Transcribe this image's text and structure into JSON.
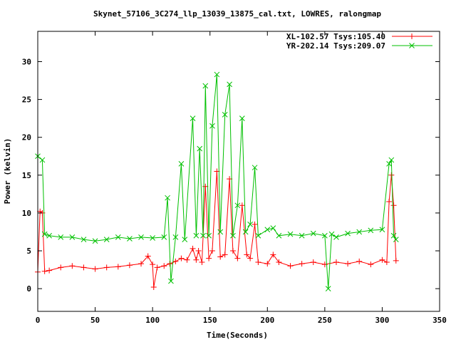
{
  "chart_data": {
    "type": "line",
    "title": "Skynet_57106_3C274_llp_13039_13875_cal.txt, LOWRES, ralongmap",
    "xlabel": "Time(Seconds)",
    "ylabel": "Power (kelvin)",
    "xlim": [
      0,
      350
    ],
    "ylim": [
      -3,
      34
    ],
    "xticks": [
      0,
      50,
      100,
      150,
      200,
      250,
      300,
      350
    ],
    "yticks": [
      0,
      5,
      10,
      15,
      20,
      25,
      30
    ],
    "legend_position": "top-right",
    "grid": false,
    "series": [
      {
        "name": "XL-102.57 Tsys:105.40",
        "color": "#ff0000",
        "marker": "plus",
        "points": [
          [
            0,
            2.2
          ],
          [
            2,
            10.2
          ],
          [
            4,
            10.0
          ],
          [
            6,
            2.3
          ],
          [
            10,
            2.4
          ],
          [
            20,
            2.8
          ],
          [
            30,
            3.0
          ],
          [
            40,
            2.8
          ],
          [
            50,
            2.6
          ],
          [
            60,
            2.8
          ],
          [
            70,
            2.9
          ],
          [
            80,
            3.1
          ],
          [
            90,
            3.3
          ],
          [
            96,
            4.3
          ],
          [
            100,
            3.2
          ],
          [
            101,
            0.2
          ],
          [
            104,
            2.8
          ],
          [
            110,
            3.0
          ],
          [
            115,
            3.3
          ],
          [
            120,
            3.6
          ],
          [
            125,
            4.0
          ],
          [
            130,
            3.8
          ],
          [
            135,
            5.3
          ],
          [
            138,
            3.8
          ],
          [
            140,
            5.0
          ],
          [
            143,
            3.5
          ],
          [
            146,
            13.5
          ],
          [
            149,
            4.0
          ],
          [
            152,
            5.0
          ],
          [
            156,
            15.5
          ],
          [
            159,
            4.2
          ],
          [
            163,
            4.5
          ],
          [
            167,
            14.5
          ],
          [
            170,
            5.0
          ],
          [
            174,
            4.0
          ],
          [
            178,
            11.0
          ],
          [
            182,
            4.5
          ],
          [
            185,
            4.0
          ],
          [
            189,
            8.5
          ],
          [
            192,
            3.5
          ],
          [
            200,
            3.3
          ],
          [
            205,
            4.5
          ],
          [
            210,
            3.5
          ],
          [
            220,
            3.0
          ],
          [
            230,
            3.3
          ],
          [
            240,
            3.5
          ],
          [
            250,
            3.2
          ],
          [
            260,
            3.5
          ],
          [
            270,
            3.3
          ],
          [
            280,
            3.6
          ],
          [
            290,
            3.2
          ],
          [
            300,
            3.8
          ],
          [
            304,
            3.5
          ],
          [
            306,
            11.5
          ],
          [
            308,
            15.0
          ],
          [
            310,
            11.0
          ],
          [
            312,
            3.7
          ]
        ]
      },
      {
        "name": "YR-202.14 Tsys:209.07",
        "color": "#00c000",
        "marker": "cross",
        "points": [
          [
            0,
            17.5
          ],
          [
            4,
            17.0
          ],
          [
            6,
            7.2
          ],
          [
            10,
            7.0
          ],
          [
            20,
            6.8
          ],
          [
            30,
            6.8
          ],
          [
            40,
            6.5
          ],
          [
            50,
            6.3
          ],
          [
            60,
            6.5
          ],
          [
            70,
            6.8
          ],
          [
            80,
            6.6
          ],
          [
            90,
            6.8
          ],
          [
            100,
            6.7
          ],
          [
            110,
            6.8
          ],
          [
            113,
            12.0
          ],
          [
            116,
            1.0
          ],
          [
            120,
            6.8
          ],
          [
            125,
            16.5
          ],
          [
            128,
            6.5
          ],
          [
            135,
            22.5
          ],
          [
            138,
            7.0
          ],
          [
            141,
            18.5
          ],
          [
            144,
            7.0
          ],
          [
            146,
            26.8
          ],
          [
            149,
            7.0
          ],
          [
            152,
            21.5
          ],
          [
            156,
            28.3
          ],
          [
            159,
            7.5
          ],
          [
            163,
            23.0
          ],
          [
            167,
            27.0
          ],
          [
            170,
            7.0
          ],
          [
            174,
            11.0
          ],
          [
            178,
            22.5
          ],
          [
            181,
            7.5
          ],
          [
            185,
            8.5
          ],
          [
            189,
            16.0
          ],
          [
            192,
            7.0
          ],
          [
            200,
            7.8
          ],
          [
            205,
            8.0
          ],
          [
            210,
            7.0
          ],
          [
            220,
            7.2
          ],
          [
            230,
            7.0
          ],
          [
            240,
            7.3
          ],
          [
            250,
            7.0
          ],
          [
            253,
            0.0
          ],
          [
            256,
            7.2
          ],
          [
            260,
            6.8
          ],
          [
            270,
            7.3
          ],
          [
            280,
            7.5
          ],
          [
            290,
            7.7
          ],
          [
            300,
            7.8
          ],
          [
            306,
            16.5
          ],
          [
            308,
            17.0
          ],
          [
            310,
            7.0
          ],
          [
            312,
            6.5
          ]
        ]
      }
    ]
  }
}
